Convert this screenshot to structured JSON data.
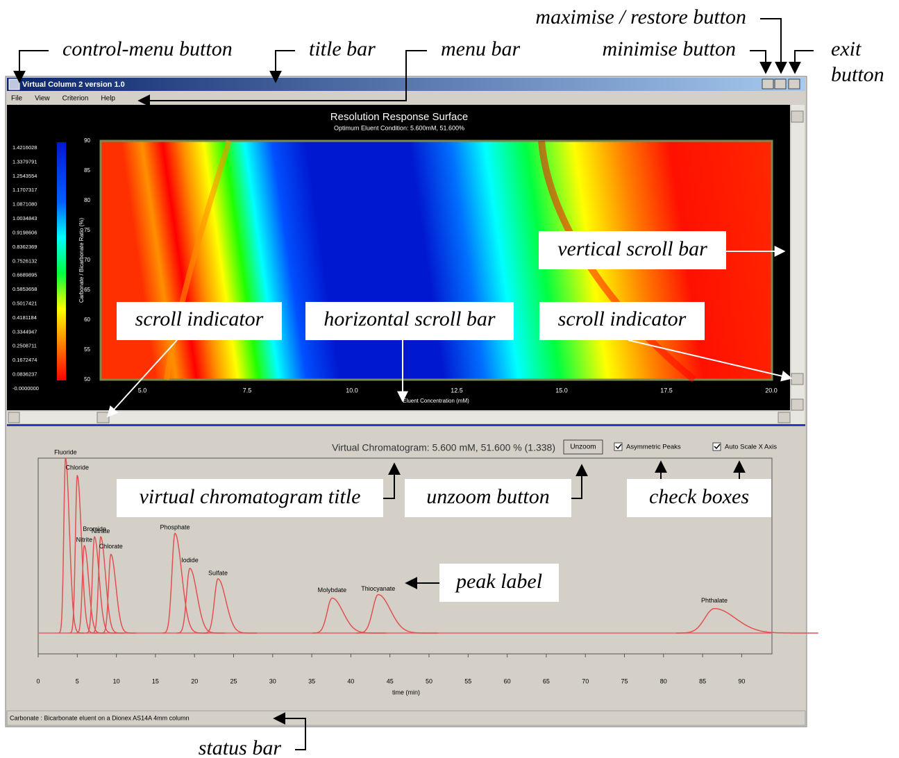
{
  "window": {
    "title": "Virtual Column 2 version 1.0",
    "menu": [
      "File",
      "View",
      "Criterion",
      "Help"
    ],
    "status_bar": "Carbonate : Bicarbonate eluent on a Dionex AS14A 4mm column"
  },
  "surface": {
    "title": "Resolution Response Surface",
    "subtitle": "Optimum Eluent Condition: 5.600mM, 51.600%",
    "x_label": "Eluent Concentration (mM)",
    "y_label": "Carbonate / Bicarbonate Ratio (%)",
    "x_ticks": [
      "5.0",
      "7.5",
      "10.0",
      "12.5",
      "15.0",
      "17.5",
      "20.0"
    ],
    "y_ticks": [
      "50",
      "55",
      "60",
      "65",
      "70",
      "75",
      "80",
      "85",
      "90"
    ],
    "colorbar_ticks": [
      "1.4216028",
      "1.3379791",
      "1.2543554",
      "1.1707317",
      "1.0871080",
      "1.0034843",
      "0.9198606",
      "0.8362369",
      "0.7526132",
      "0.6689895",
      "0.5853658",
      "0.5017421",
      "0.4181184",
      "0.3344947",
      "0.2508711",
      "0.1672474",
      "0.0836237",
      "-0.0000000"
    ]
  },
  "chromatogram": {
    "title": "Virtual Chromatogram: 5.600 mM, 51.600 % (1.338)",
    "unzoom_button": "Unzoom",
    "checkboxes": [
      "Asymmetric Peaks",
      "Auto Scale X Axis"
    ],
    "x_label": "time (min)",
    "x_ticks": [
      0,
      5,
      10,
      15,
      20,
      25,
      30,
      35,
      40,
      45,
      50,
      55,
      60,
      65,
      70,
      75,
      80,
      85,
      90
    ],
    "peaks": [
      {
        "label": "Fluoride",
        "time": 3.5,
        "height": 100
      },
      {
        "label": "Chloride",
        "time": 5.0,
        "height": 90
      },
      {
        "label": "Nitrite",
        "time": 5.9,
        "height": 50
      },
      {
        "label": "Bromide",
        "time": 7.2,
        "height": 55
      },
      {
        "label": "Nitrate",
        "time": 8.0,
        "height": 55
      },
      {
        "label": "Chlorate",
        "time": 9.3,
        "height": 45
      },
      {
        "label": "Phosphate",
        "time": 17.5,
        "height": 57
      },
      {
        "label": "Iodide",
        "time": 19.4,
        "height": 37
      },
      {
        "label": "Sulfate",
        "time": 23.0,
        "height": 31
      },
      {
        "label": "Molybdate",
        "time": 37.6,
        "height": 20
      },
      {
        "label": "Thiocyanate",
        "time": 43.5,
        "height": 22
      },
      {
        "label": "Phthalate",
        "time": 86.5,
        "height": 14
      }
    ]
  },
  "annotations": [
    "control-menu button",
    "title bar",
    "menu bar",
    "maximise / restore button",
    "minimise button",
    "exit",
    "button",
    "vertical scroll bar",
    "scroll indicator",
    "horizontal scroll bar",
    "scroll indicator",
    "virtual chromatogram title",
    "unzoom button",
    "check boxes",
    "peak label",
    "status bar"
  ]
}
